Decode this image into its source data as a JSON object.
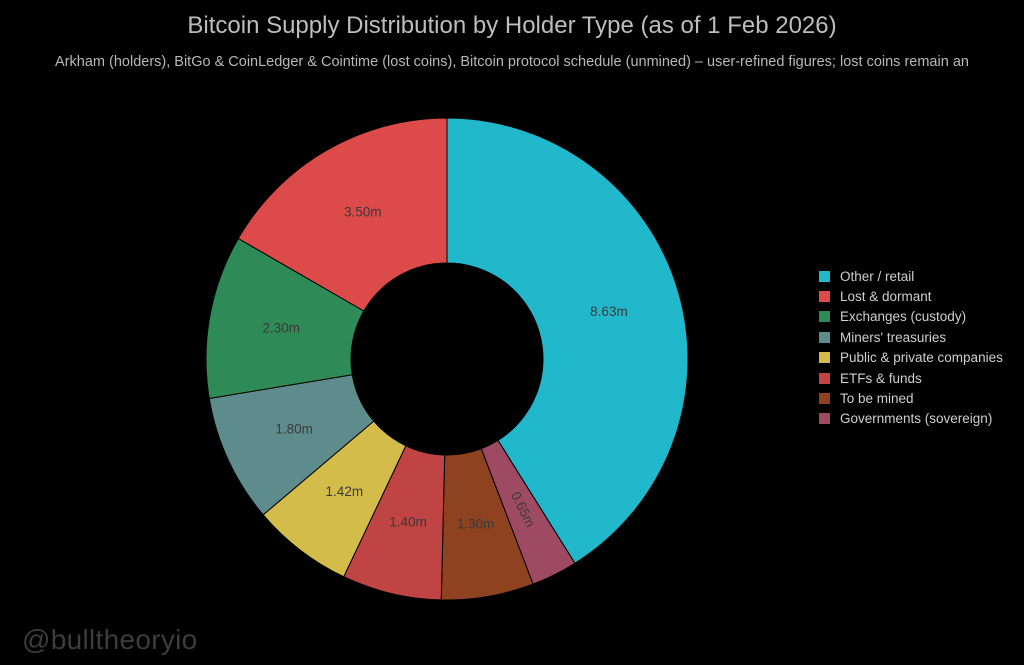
{
  "chart_data": {
    "type": "pie",
    "title": "Bitcoin Supply Distribution by Holder Type (as of 1 Feb 2026)",
    "subtitle": "Arkham (holders), BitGo & CoinLedger & Cointime (lost coins), Bitcoin protocol schedule (unmined) – user-refined figures; lost coins remain an",
    "donut": true,
    "legend_position": "right",
    "unit": "million BTC",
    "slices": [
      {
        "name": "Other / retail",
        "value": 8.63,
        "label": "8.63m",
        "color": "#22b8cc"
      },
      {
        "name": "Governments (sovereign)",
        "value": 0.65,
        "label": "0.65m",
        "color": "#9e4a63"
      },
      {
        "name": "To be mined",
        "value": 1.3,
        "label": "1.30m",
        "color": "#8e4220"
      },
      {
        "name": "ETFs & funds",
        "value": 1.4,
        "label": "1.40m",
        "color": "#c04444"
      },
      {
        "name": "Public & private companies",
        "value": 1.42,
        "label": "1.42m",
        "color": "#d4bc4a"
      },
      {
        "name": "Miners' treasuries",
        "value": 1.8,
        "label": "1.80m",
        "color": "#5e8b8c"
      },
      {
        "name": "Exchanges (custody)",
        "value": 2.3,
        "label": "2.30m",
        "color": "#2e8b57"
      },
      {
        "name": "Lost & dormant",
        "value": 3.5,
        "label": "3.50m",
        "color": "#dc4a4a"
      }
    ],
    "legend": [
      {
        "label": "Other / retail",
        "color": "#22b8cc"
      },
      {
        "label": "Lost & dormant",
        "color": "#dc4a4a"
      },
      {
        "label": "Exchanges (custody)",
        "color": "#2e8b57"
      },
      {
        "label": "Miners' treasuries",
        "color": "#5e8b8c"
      },
      {
        "label": "Public & private companies",
        "color": "#d4bc4a"
      },
      {
        "label": "ETFs & funds",
        "color": "#c04444"
      },
      {
        "label": "To be mined",
        "color": "#8e4220"
      },
      {
        "label": "Governments (sovereign)",
        "color": "#9e4a63"
      }
    ]
  },
  "watermark": "@bulltheoryio"
}
